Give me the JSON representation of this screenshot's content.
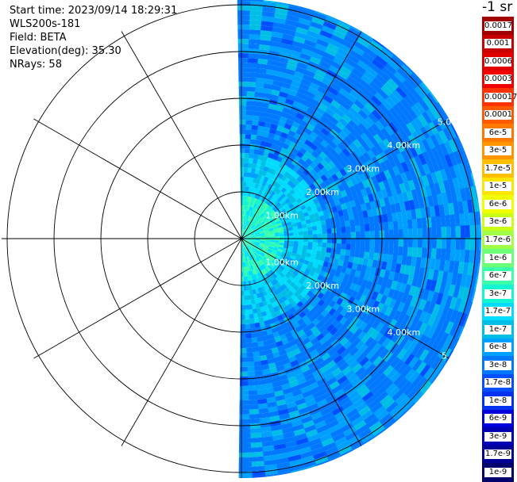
{
  "info": {
    "start_time": "Start time: 2023/09/14 18:29:31",
    "instrument": "WLS200s-181",
    "field": "Field: BETA",
    "elevation": "Elevation(deg): 35.30",
    "nrays": "NRays: 58"
  },
  "colorbar": {
    "unit": "-1 sr",
    "entries": [
      {
        "label": "0.0017",
        "color": "#a00000"
      },
      {
        "label": "0.001",
        "color": "#c80000"
      },
      {
        "label": "0.0006",
        "color": "#e10000"
      },
      {
        "label": "0.0003",
        "color": "#f00000"
      },
      {
        "label": "0.00017",
        "color": "#ff3200"
      },
      {
        "label": "0.0001",
        "color": "#ff5a00"
      },
      {
        "label": "6e-5",
        "color": "#ff7800"
      },
      {
        "label": "3e-5",
        "color": "#ff9600"
      },
      {
        "label": "1.7e-5",
        "color": "#ffbe00"
      },
      {
        "label": "1e-5",
        "color": "#ffe600"
      },
      {
        "label": "6e-6",
        "color": "#f0ff00"
      },
      {
        "label": "3e-6",
        "color": "#c8ff14"
      },
      {
        "label": "1.7e-6",
        "color": "#a0ff46"
      },
      {
        "label": "1e-6",
        "color": "#6eff78"
      },
      {
        "label": "6e-7",
        "color": "#3cffaa"
      },
      {
        "label": "3e-7",
        "color": "#14f5d2"
      },
      {
        "label": "1.7e-7",
        "color": "#00dcff"
      },
      {
        "label": "1e-7",
        "color": "#00bee6"
      },
      {
        "label": "6e-8",
        "color": "#00a0ff"
      },
      {
        "label": "3e-8",
        "color": "#0078ff"
      },
      {
        "label": "1.7e-8",
        "color": "#0050ff"
      },
      {
        "label": "1e-8",
        "color": "#0032f0"
      },
      {
        "label": "6e-9",
        "color": "#0000dc"
      },
      {
        "label": "3e-9",
        "color": "#0000b4"
      },
      {
        "label": "1.7e-9",
        "color": "#000096"
      },
      {
        "label": "1e-9",
        "color": "#00006e"
      }
    ]
  },
  "rings": {
    "upper_labels": [
      "1.00km",
      "2.00km",
      "3.00km",
      "4.00km",
      "5.0"
    ],
    "lower_labels": [
      "1.00km",
      "2.00km",
      "3.00km",
      "4.00km",
      "5"
    ]
  }
}
